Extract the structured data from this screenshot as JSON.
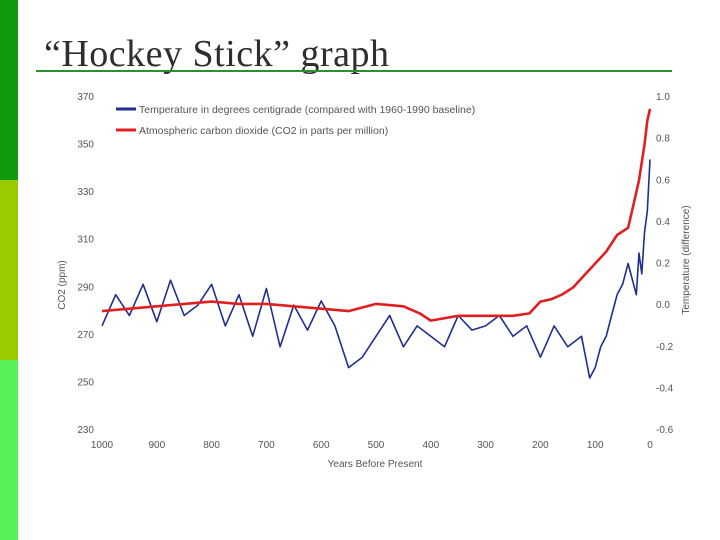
{
  "slide": {
    "title": "“Hockey Stick” graph",
    "accent_colors": [
      "#0f9a0f",
      "#99cc00",
      "#5af05a"
    ]
  },
  "chart_data": {
    "type": "line",
    "x_label": "Years Before Present",
    "x_ticks": [
      1000,
      900,
      800,
      700,
      600,
      500,
      400,
      300,
      200,
      100,
      0
    ],
    "x_range": [
      1000,
      0
    ],
    "y_left": {
      "label": "CO2 (ppm)",
      "range": [
        230,
        370
      ],
      "ticks": [
        370,
        350,
        330,
        310,
        290,
        270,
        250,
        230
      ]
    },
    "y_right": {
      "label": "Temperature (difference)",
      "range": [
        -0.6,
        1.0
      ],
      "ticks": [
        "1.0",
        "0.8",
        "0.6",
        "0.4",
        "0.2",
        "0.0",
        "-0.2",
        "-0.4",
        "-0.6"
      ]
    },
    "grid": false,
    "legend_position": "top-left",
    "series": [
      {
        "name": "Temperature in degrees centigrade (compared with 1960-1990 baseline)",
        "axis": "right",
        "color": "#1f2f8f",
        "x": [
          1000,
          975,
          950,
          925,
          900,
          875,
          850,
          825,
          800,
          775,
          750,
          725,
          700,
          675,
          650,
          625,
          600,
          575,
          550,
          525,
          500,
          475,
          450,
          425,
          400,
          375,
          350,
          325,
          300,
          275,
          250,
          225,
          200,
          175,
          150,
          125,
          110,
          100,
          90,
          80,
          70,
          60,
          50,
          40,
          30,
          25,
          20,
          15,
          10,
          5,
          0
        ],
        "values": [
          -0.1,
          0.05,
          -0.05,
          0.1,
          -0.08,
          0.12,
          -0.05,
          0.0,
          0.1,
          -0.1,
          0.05,
          -0.15,
          0.08,
          -0.2,
          0.0,
          -0.12,
          0.02,
          -0.1,
          -0.3,
          -0.25,
          -0.15,
          -0.05,
          -0.2,
          -0.1,
          -0.15,
          -0.2,
          -0.05,
          -0.12,
          -0.1,
          -0.05,
          -0.15,
          -0.1,
          -0.25,
          -0.1,
          -0.2,
          -0.15,
          -0.35,
          -0.3,
          -0.2,
          -0.15,
          -0.05,
          0.05,
          0.1,
          0.2,
          0.1,
          0.05,
          0.25,
          0.15,
          0.35,
          0.45,
          0.7
        ]
      },
      {
        "name": "Atmospheric carbon dioxide (CO2 in parts per million)",
        "axis": "left",
        "color": "#e02020",
        "x": [
          1000,
          950,
          900,
          850,
          800,
          750,
          700,
          650,
          600,
          550,
          500,
          450,
          420,
          400,
          350,
          300,
          250,
          220,
          200,
          180,
          160,
          140,
          120,
          100,
          80,
          60,
          40,
          30,
          20,
          10,
          5,
          0
        ],
        "values": [
          280,
          281,
          282,
          283,
          284,
          283,
          283,
          282,
          281,
          280,
          283,
          282,
          279,
          276,
          278,
          278,
          278,
          279,
          284,
          285,
          287,
          290,
          295,
          300,
          305,
          312,
          315,
          325,
          335,
          350,
          360,
          365
        ]
      }
    ]
  }
}
